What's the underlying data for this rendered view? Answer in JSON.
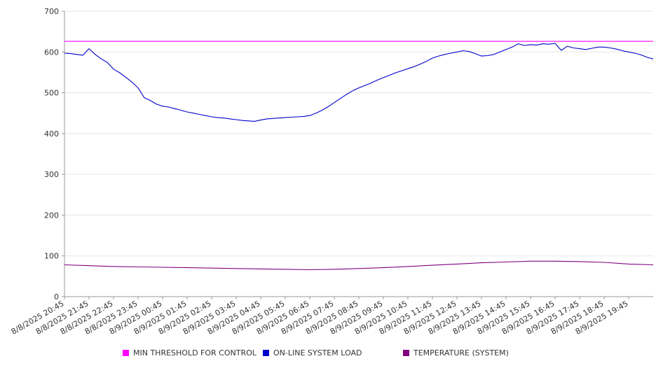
{
  "chart_data": {
    "type": "line",
    "title": "",
    "xlabel": "",
    "ylabel": "",
    "ylim": [
      0,
      700
    ],
    "yticks": [
      0,
      100,
      200,
      300,
      400,
      500,
      600,
      700
    ],
    "grid": true,
    "legend_position": "bottom",
    "x_tick_labels": [
      "8/8/2025 20:45",
      "8/8/2025 21:45",
      "8/8/2025 22:45",
      "8/8/2025 23:45",
      "8/9/2025 00:45",
      "8/9/2025 01:45",
      "8/9/2025 02:45",
      "8/9/2025 03:45",
      "8/9/2025 04:45",
      "8/9/2025 05:45",
      "8/9/2025 06:45",
      "8/9/2025 07:45",
      "8/9/2025 08:45",
      "8/9/2025 09:45",
      "8/9/2025 10:45",
      "8/9/2025 11:45",
      "8/9/2025 12:45",
      "8/9/2025 13:45",
      "8/9/2025 14:45",
      "8/9/2025 15:45",
      "8/9/2025 16:45",
      "8/9/2025 17:45",
      "8/9/2025 18:45",
      "8/9/2025 19:45"
    ],
    "x_range": [
      "8/8/2025 20:45",
      "8/9/2025 20:45"
    ],
    "series": [
      {
        "name": "MIN THRESHOLD FOR CONTROL",
        "color": "#ff00ff",
        "x": [
          "8/8/2025 20:45",
          "8/9/2025 20:45"
        ],
        "values": [
          626,
          626
        ]
      },
      {
        "name": "ON-LINE SYSTEM LOAD",
        "color": "#0000cc",
        "x": [
          "8/8/2025 20:45",
          "8/8/2025 21:00",
          "8/8/2025 21:15",
          "8/8/2025 21:30",
          "8/8/2025 21:45",
          "8/8/2025 22:00",
          "8/8/2025 22:15",
          "8/8/2025 22:30",
          "8/8/2025 22:45",
          "8/8/2025 23:00",
          "8/8/2025 23:15",
          "8/8/2025 23:30",
          "8/8/2025 23:45",
          "8/9/2025 00:00",
          "8/9/2025 00:15",
          "8/9/2025 00:30",
          "8/9/2025 00:45",
          "8/9/2025 01:00",
          "8/9/2025 01:15",
          "8/9/2025 01:30",
          "8/9/2025 01:45",
          "8/9/2025 02:00",
          "8/9/2025 02:15",
          "8/9/2025 02:30",
          "8/9/2025 02:45",
          "8/9/2025 03:00",
          "8/9/2025 03:15",
          "8/9/2025 03:30",
          "8/9/2025 03:45",
          "8/9/2025 04:00",
          "8/9/2025 04:15",
          "8/9/2025 04:30",
          "8/9/2025 04:45",
          "8/9/2025 05:00",
          "8/9/2025 05:15",
          "8/9/2025 05:30",
          "8/9/2025 05:45",
          "8/9/2025 06:00",
          "8/9/2025 06:15",
          "8/9/2025 06:30",
          "8/9/2025 06:45",
          "8/9/2025 07:00",
          "8/9/2025 07:15",
          "8/9/2025 07:30",
          "8/9/2025 07:45",
          "8/9/2025 08:00",
          "8/9/2025 08:15",
          "8/9/2025 08:30",
          "8/9/2025 08:45",
          "8/9/2025 09:00",
          "8/9/2025 09:15",
          "8/9/2025 09:30",
          "8/9/2025 09:45",
          "8/9/2025 10:00",
          "8/9/2025 10:15",
          "8/9/2025 10:30",
          "8/9/2025 10:45",
          "8/9/2025 11:00",
          "8/9/2025 11:15",
          "8/9/2025 11:30",
          "8/9/2025 11:45",
          "8/9/2025 12:00",
          "8/9/2025 12:15",
          "8/9/2025 12:30",
          "8/9/2025 12:45",
          "8/9/2025 13:00",
          "8/9/2025 13:15",
          "8/9/2025 13:30",
          "8/9/2025 13:45",
          "8/9/2025 14:00",
          "8/9/2025 14:15",
          "8/9/2025 14:30",
          "8/9/2025 14:45",
          "8/9/2025 15:00",
          "8/9/2025 15:15",
          "8/9/2025 15:30",
          "8/9/2025 15:45",
          "8/9/2025 16:00",
          "8/9/2025 16:15",
          "8/9/2025 16:30",
          "8/9/2025 16:45",
          "8/9/2025 17:00",
          "8/9/2025 17:15",
          "8/9/2025 17:30",
          "8/9/2025 17:45",
          "8/9/2025 18:00",
          "8/9/2025 18:15",
          "8/9/2025 18:30",
          "8/9/2025 18:45",
          "8/9/2025 19:00",
          "8/9/2025 19:15",
          "8/9/2025 19:30",
          "8/9/2025 19:45",
          "8/9/2025 20:00",
          "8/9/2025 20:15",
          "8/9/2025 20:30",
          "8/9/2025 20:45"
        ],
        "values": [
          597,
          596,
          594,
          592,
          608,
          594,
          583,
          574,
          558,
          549,
          538,
          526,
          512,
          488,
          481,
          472,
          467,
          465,
          461,
          457,
          453,
          450,
          447,
          444,
          441,
          439,
          438,
          436,
          434,
          432,
          431,
          430,
          433,
          436,
          437,
          438,
          439,
          440,
          441,
          442,
          444,
          450,
          457,
          466,
          476,
          486,
          496,
          505,
          512,
          518,
          524,
          531,
          537,
          543,
          549,
          554,
          559,
          564,
          570,
          577,
          585,
          590,
          594,
          597,
          600,
          603,
          601,
          596,
          590,
          591,
          594,
          600,
          606,
          612,
          620,
          616,
          618,
          617,
          620,
          619,
          621,
          604,
          614,
          610,
          608,
          606,
          609,
          612,
          612,
          610,
          607,
          603,
          600,
          597,
          593,
          587,
          583
        ]
      },
      {
        "name": "TEMPERATURE (SYSTEM)",
        "color": "#800080",
        "x": [
          "8/8/2025 20:45",
          "8/8/2025 21:45",
          "8/8/2025 22:45",
          "8/8/2025 23:45",
          "8/9/2025 00:45",
          "8/9/2025 01:45",
          "8/9/2025 02:45",
          "8/9/2025 03:45",
          "8/9/2025 04:45",
          "8/9/2025 05:45",
          "8/9/2025 06:45",
          "8/9/2025 07:45",
          "8/9/2025 08:45",
          "8/9/2025 09:45",
          "8/9/2025 10:45",
          "8/9/2025 11:45",
          "8/9/2025 12:45",
          "8/9/2025 13:45",
          "8/9/2025 14:45",
          "8/9/2025 15:45",
          "8/9/2025 16:45",
          "8/9/2025 17:45",
          "8/9/2025 18:45",
          "8/9/2025 19:45",
          "8/9/2025 20:45"
        ],
        "values": [
          78,
          76,
          74,
          73,
          72,
          71,
          70,
          69,
          68,
          67,
          66,
          67,
          69,
          71,
          74,
          77,
          80,
          83,
          85,
          87,
          87,
          86,
          84,
          80,
          78
        ]
      }
    ]
  }
}
